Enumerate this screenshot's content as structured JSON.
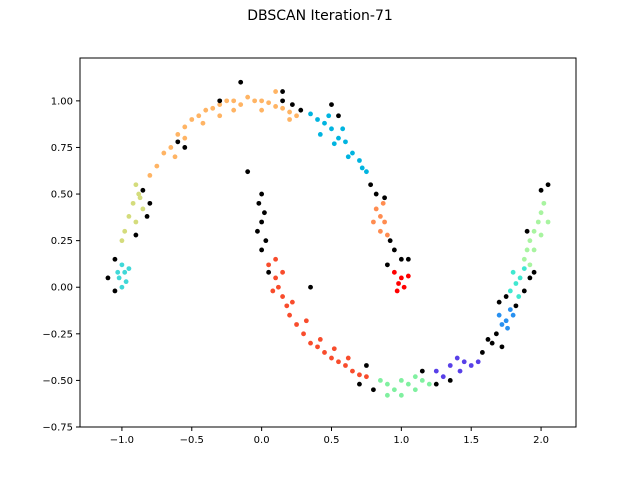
{
  "chart_data": {
    "type": "scatter",
    "title": "DBSCAN Iteration-71",
    "xlabel": "",
    "ylabel": "",
    "xlim": [
      -1.3,
      2.25
    ],
    "ylim": [
      -0.75,
      1.23
    ],
    "xticks": [
      -1.0,
      -0.5,
      0.0,
      0.5,
      1.0,
      1.5,
      2.0
    ],
    "xtick_labels": [
      "−1.0",
      "−0.5",
      "0.0",
      "0.5",
      "1.0",
      "1.5",
      "2.0"
    ],
    "yticks": [
      -0.75,
      -0.5,
      -0.25,
      0.0,
      0.25,
      0.5,
      0.75,
      1.0
    ],
    "ytick_labels": [
      "−0.75",
      "−0.50",
      "−0.25",
      "0.00",
      "0.25",
      "0.50",
      "0.75",
      "1.00"
    ],
    "grid": false,
    "legend": false,
    "clusters": [
      {
        "color": "#ffb464",
        "description_points": [
          [
            -0.65,
            0.75
          ],
          [
            -0.6,
            0.82
          ],
          [
            -0.55,
            0.86
          ],
          [
            -0.5,
            0.9
          ],
          [
            -0.45,
            0.92
          ],
          [
            -0.4,
            0.95
          ],
          [
            -0.35,
            0.96
          ],
          [
            -0.3,
            0.98
          ],
          [
            -0.25,
            1.0
          ],
          [
            -0.2,
            1.0
          ],
          [
            -0.15,
            0.98
          ],
          [
            -0.1,
            1.02
          ],
          [
            -0.05,
            1.0
          ],
          [
            0.0,
            1.0
          ],
          [
            0.05,
            0.99
          ],
          [
            0.1,
            0.97
          ],
          [
            0.15,
            0.96
          ],
          [
            0.2,
            0.94
          ],
          [
            0.25,
            0.92
          ],
          [
            -0.7,
            0.72
          ],
          [
            -0.75,
            0.65
          ],
          [
            -0.8,
            0.6
          ],
          [
            -0.55,
            0.8
          ],
          [
            -0.3,
            0.92
          ],
          [
            0.0,
            0.95
          ],
          [
            0.2,
            0.9
          ],
          [
            -0.2,
            0.95
          ],
          [
            -0.42,
            0.88
          ],
          [
            -0.62,
            0.7
          ],
          [
            0.1,
            1.05
          ]
        ]
      },
      {
        "color": "#00b4e0",
        "description_points": [
          [
            0.35,
            0.93
          ],
          [
            0.4,
            0.9
          ],
          [
            0.45,
            0.88
          ],
          [
            0.5,
            0.85
          ],
          [
            0.55,
            0.8
          ],
          [
            0.6,
            0.78
          ],
          [
            0.65,
            0.72
          ],
          [
            0.7,
            0.68
          ],
          [
            0.75,
            0.62
          ],
          [
            0.42,
            0.82
          ],
          [
            0.52,
            0.77
          ],
          [
            0.62,
            0.7
          ],
          [
            0.72,
            0.64
          ],
          [
            0.48,
            0.92
          ],
          [
            0.58,
            0.85
          ]
        ]
      },
      {
        "color": "#d4dc7c",
        "description_points": [
          [
            -0.9,
            0.55
          ],
          [
            -0.88,
            0.5
          ],
          [
            -0.92,
            0.45
          ],
          [
            -0.85,
            0.42
          ],
          [
            -0.95,
            0.38
          ],
          [
            -0.98,
            0.3
          ],
          [
            -1.0,
            0.25
          ],
          [
            -0.9,
            0.35
          ],
          [
            -0.87,
            0.48
          ]
        ]
      },
      {
        "color": "#40d8d8",
        "description_points": [
          [
            -1.0,
            0.12
          ],
          [
            -0.98,
            0.08
          ],
          [
            -1.02,
            0.05
          ],
          [
            -0.95,
            0.1
          ],
          [
            -1.0,
            0.0
          ],
          [
            -0.97,
            0.03
          ],
          [
            -1.03,
            0.08
          ]
        ]
      },
      {
        "color": "#ff8c50",
        "description_points": [
          [
            0.82,
            0.42
          ],
          [
            0.85,
            0.38
          ],
          [
            0.88,
            0.35
          ],
          [
            0.85,
            0.3
          ],
          [
            0.9,
            0.28
          ],
          [
            0.8,
            0.35
          ],
          [
            0.87,
            0.45
          ]
        ]
      },
      {
        "color": "#ff0000",
        "description_points": [
          [
            0.95,
            0.08
          ],
          [
            1.0,
            0.05
          ],
          [
            1.02,
            0.0
          ],
          [
            0.98,
            0.02
          ],
          [
            1.05,
            0.06
          ],
          [
            0.97,
            -0.02
          ]
        ]
      },
      {
        "color": "#f84c2c",
        "description_points": [
          [
            0.05,
            0.12
          ],
          [
            0.1,
            0.05
          ],
          [
            0.12,
            0.0
          ],
          [
            0.15,
            -0.05
          ],
          [
            0.18,
            -0.1
          ],
          [
            0.2,
            -0.15
          ],
          [
            0.25,
            -0.2
          ],
          [
            0.3,
            -0.25
          ],
          [
            0.35,
            -0.3
          ],
          [
            0.4,
            -0.32
          ],
          [
            0.45,
            -0.35
          ],
          [
            0.5,
            -0.38
          ],
          [
            0.55,
            -0.4
          ],
          [
            0.6,
            -0.42
          ],
          [
            0.65,
            -0.45
          ],
          [
            0.7,
            -0.47
          ],
          [
            0.75,
            -0.48
          ],
          [
            0.08,
            -0.02
          ],
          [
            0.22,
            -0.08
          ],
          [
            0.32,
            -0.18
          ],
          [
            0.42,
            -0.28
          ],
          [
            0.52,
            -0.33
          ],
          [
            0.62,
            -0.38
          ],
          [
            0.1,
            0.15
          ],
          [
            0.15,
            0.08
          ]
        ]
      },
      {
        "color": "#80f0a0",
        "description_points": [
          [
            0.85,
            -0.5
          ],
          [
            0.9,
            -0.52
          ],
          [
            0.95,
            -0.55
          ],
          [
            1.0,
            -0.5
          ],
          [
            1.05,
            -0.52
          ],
          [
            1.1,
            -0.55
          ],
          [
            1.15,
            -0.5
          ],
          [
            0.9,
            -0.58
          ],
          [
            1.0,
            -0.58
          ],
          [
            1.1,
            -0.48
          ],
          [
            1.2,
            -0.52
          ]
        ]
      },
      {
        "color": "#5840e8",
        "description_points": [
          [
            1.25,
            -0.45
          ],
          [
            1.3,
            -0.48
          ],
          [
            1.35,
            -0.42
          ],
          [
            1.4,
            -0.38
          ],
          [
            1.45,
            -0.4
          ],
          [
            1.5,
            -0.42
          ],
          [
            1.55,
            -0.4
          ],
          [
            1.42,
            -0.45
          ]
        ]
      },
      {
        "color": "#2890f0",
        "description_points": [
          [
            1.7,
            -0.15
          ],
          [
            1.75,
            -0.18
          ],
          [
            1.78,
            -0.12
          ],
          [
            1.72,
            -0.2
          ],
          [
            1.8,
            -0.15
          ],
          [
            1.76,
            -0.22
          ]
        ]
      },
      {
        "color": "#40e8d0",
        "description_points": [
          [
            1.78,
            -0.02
          ],
          [
            1.82,
            0.02
          ],
          [
            1.85,
            0.05
          ],
          [
            1.8,
            0.08
          ],
          [
            1.88,
            0.1
          ],
          [
            1.84,
            -0.05
          ]
        ]
      },
      {
        "color": "#a8f4a0",
        "description_points": [
          [
            1.88,
            0.15
          ],
          [
            1.9,
            0.2
          ],
          [
            1.92,
            0.25
          ],
          [
            1.95,
            0.3
          ],
          [
            1.98,
            0.35
          ],
          [
            2.0,
            0.4
          ],
          [
            2.02,
            0.45
          ],
          [
            1.95,
            0.2
          ],
          [
            2.0,
            0.28
          ],
          [
            1.92,
            0.12
          ],
          [
            2.05,
            0.35
          ]
        ]
      },
      {
        "color": "#000000",
        "description_points": [
          [
            0.0,
            0.5
          ],
          [
            -0.02,
            0.45
          ],
          [
            0.02,
            0.4
          ],
          [
            0.0,
            0.35
          ],
          [
            -0.03,
            0.3
          ],
          [
            0.03,
            0.25
          ],
          [
            0.0,
            0.2
          ],
          [
            -0.1,
            0.62
          ],
          [
            0.15,
            1.0
          ],
          [
            0.22,
            0.98
          ],
          [
            0.28,
            0.95
          ],
          [
            0.5,
            0.98
          ],
          [
            0.55,
            0.92
          ],
          [
            0.78,
            0.55
          ],
          [
            0.82,
            0.5
          ],
          [
            0.88,
            0.48
          ],
          [
            0.95,
            0.2
          ],
          [
            1.0,
            0.15
          ],
          [
            0.92,
            0.25
          ],
          [
            0.9,
            0.12
          ],
          [
            1.05,
            0.15
          ],
          [
            -0.6,
            0.78
          ],
          [
            -0.55,
            0.75
          ],
          [
            -0.8,
            0.45
          ],
          [
            -0.82,
            0.38
          ],
          [
            -0.9,
            0.28
          ],
          [
            -1.05,
            0.15
          ],
          [
            -1.1,
            0.05
          ],
          [
            -1.05,
            -0.02
          ],
          [
            -0.85,
            0.52
          ],
          [
            -0.3,
            1.0
          ],
          [
            0.8,
            -0.55
          ],
          [
            0.75,
            -0.42
          ],
          [
            0.7,
            -0.52
          ],
          [
            1.15,
            -0.45
          ],
          [
            1.25,
            -0.52
          ],
          [
            1.35,
            -0.5
          ],
          [
            1.58,
            -0.35
          ],
          [
            1.62,
            -0.28
          ],
          [
            1.65,
            -0.3
          ],
          [
            1.68,
            -0.25
          ],
          [
            1.72,
            -0.32
          ],
          [
            1.7,
            -0.08
          ],
          [
            1.75,
            -0.05
          ],
          [
            1.82,
            -0.1
          ],
          [
            1.88,
            -0.02
          ],
          [
            1.92,
            0.05
          ],
          [
            1.95,
            0.08
          ],
          [
            2.05,
            0.55
          ],
          [
            2.0,
            0.52
          ],
          [
            1.9,
            0.3
          ],
          [
            0.35,
            0.0
          ],
          [
            0.05,
            0.08
          ],
          [
            0.15,
            1.05
          ],
          [
            -0.15,
            1.1
          ]
        ]
      }
    ]
  }
}
